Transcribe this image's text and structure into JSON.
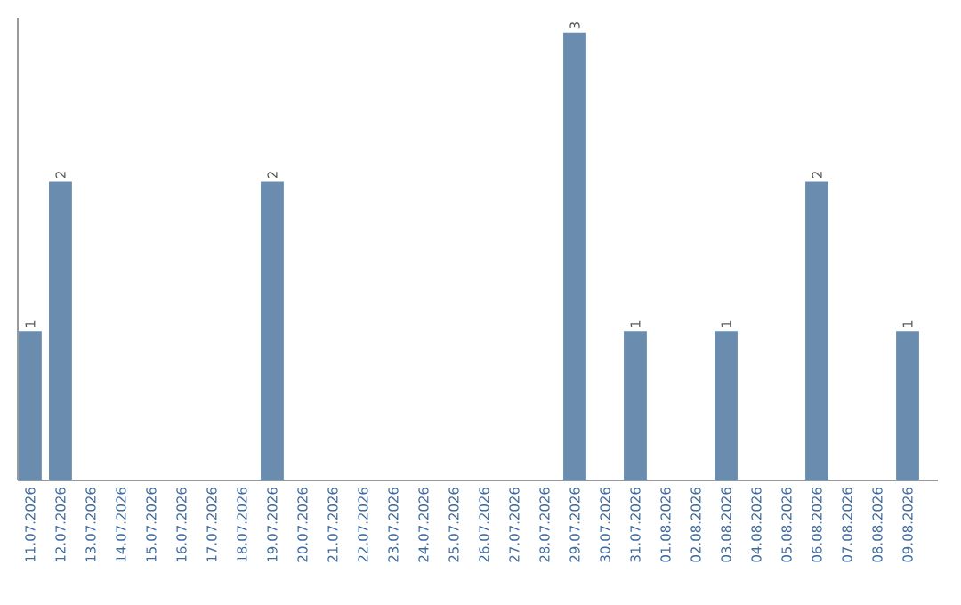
{
  "chart_data": {
    "type": "bar",
    "color": "#6a8caf",
    "categories": [
      "11.07.2026",
      "12.07.2026",
      "13.07.2026",
      "14.07.2026",
      "15.07.2026",
      "16.07.2026",
      "17.07.2026",
      "18.07.2026",
      "19.07.2026",
      "20.07.2026",
      "21.07.2026",
      "22.07.2026",
      "23.07.2026",
      "24.07.2026",
      "25.07.2026",
      "26.07.2026",
      "27.07.2026",
      "28.07.2026",
      "29.07.2026",
      "30.07.2026",
      "31.07.2026",
      "01.08.2026",
      "02.08.2026",
      "03.08.2026",
      "04.08.2026",
      "05.08.2026",
      "06.08.2026",
      "07.08.2026",
      "08.08.2026",
      "09.08.2026"
    ],
    "values": [
      1,
      2,
      0,
      0,
      0,
      0,
      0,
      0,
      2,
      0,
      0,
      0,
      0,
      0,
      0,
      0,
      0,
      0,
      3,
      0,
      1,
      0,
      0,
      1,
      0,
      0,
      2,
      0,
      0,
      1
    ],
    "value_labels": [
      "1",
      "2",
      null,
      null,
      null,
      null,
      null,
      null,
      "2",
      null,
      null,
      null,
      null,
      null,
      null,
      null,
      null,
      null,
      "3",
      null,
      "1",
      null,
      null,
      "1",
      null,
      null,
      "2",
      null,
      null,
      "1"
    ],
    "ylim": [
      0,
      3.1
    ],
    "tick_labels": "x"
  }
}
